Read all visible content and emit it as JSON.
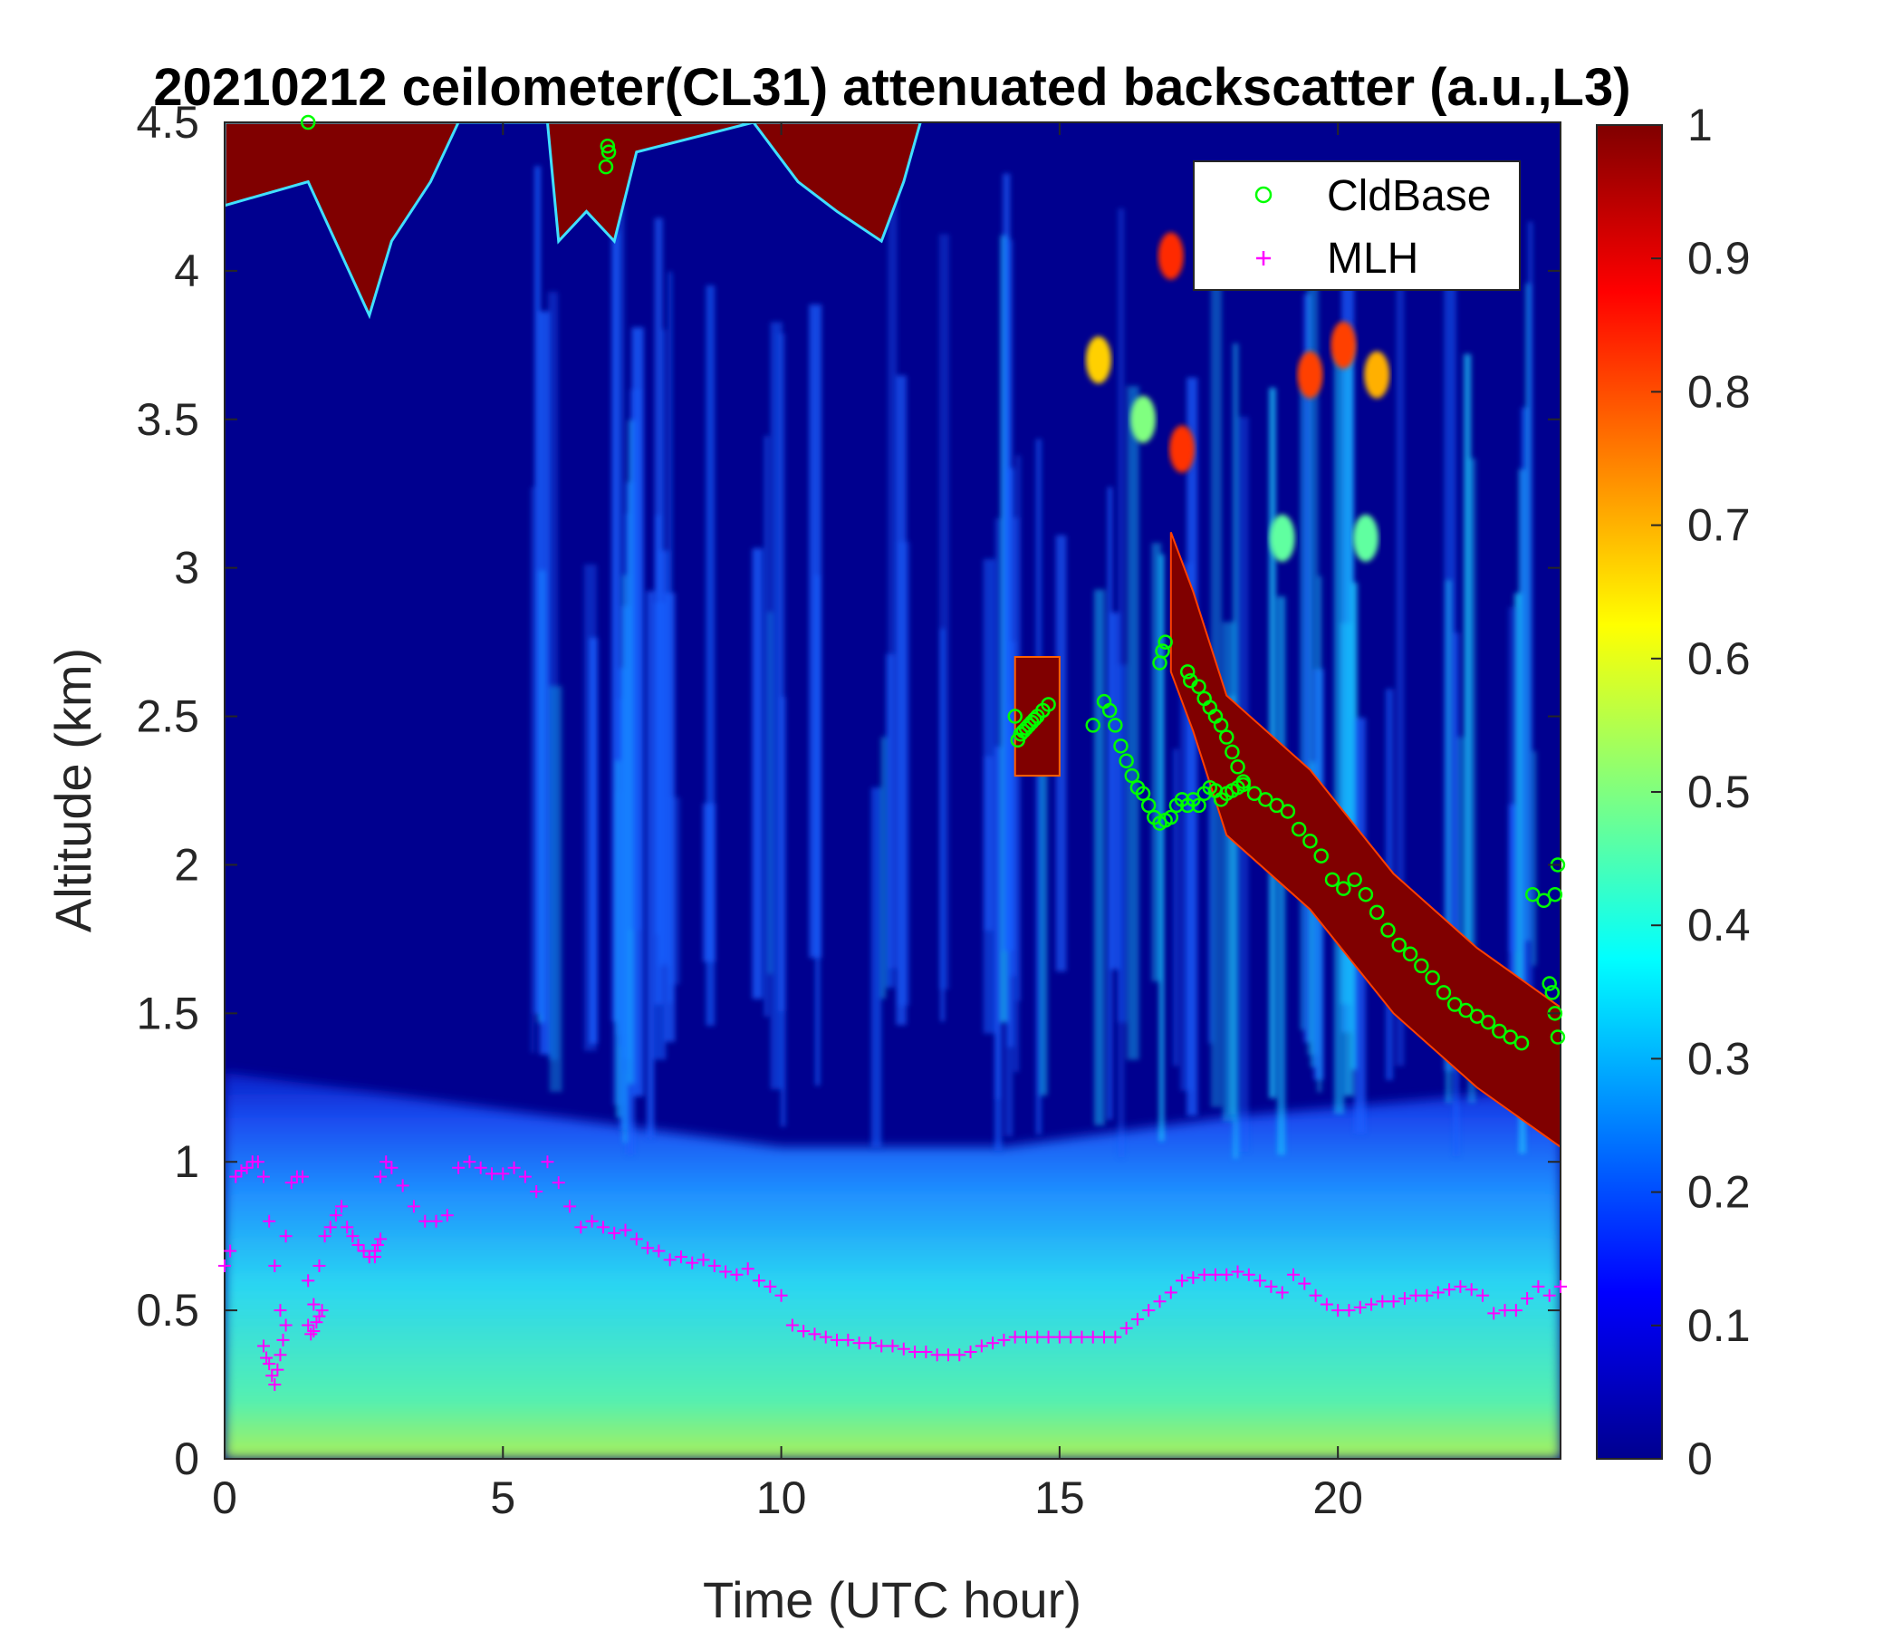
{
  "chart_data": {
    "type": "heatmap",
    "title": "20210212 ceilometer(CL31) attenuated backscatter (a.u.,L3)",
    "xlabel": "Time (UTC hour)",
    "ylabel": "Altitude (km)",
    "xlim": [
      0,
      24
    ],
    "ylim": [
      0,
      4.5
    ],
    "x_ticks": [
      "0",
      "5",
      "10",
      "15",
      "20"
    ],
    "y_ticks": [
      "0",
      "0.5",
      "1",
      "1.5",
      "2",
      "2.5",
      "3",
      "3.5",
      "4",
      "4.5"
    ],
    "colorbar": {
      "colormap": "jet",
      "range": [
        0,
        1
      ],
      "ticks": [
        "0",
        "0.1",
        "0.2",
        "0.3",
        "0.4",
        "0.5",
        "0.6",
        "0.7",
        "0.8",
        "0.9",
        "1"
      ]
    },
    "legend": {
      "placement": "top-right",
      "entries": [
        {
          "label": "CldBase",
          "marker": "circle",
          "color": "#00ff00"
        },
        {
          "label": "MLH",
          "marker": "plus",
          "color": "#ff00ff"
        }
      ]
    },
    "features": {
      "high_cloud": [
        [
          0,
          4.22
        ],
        [
          1.5,
          4.3
        ],
        [
          2.6,
          3.85
        ],
        [
          3.0,
          4.1
        ],
        [
          3.7,
          4.3
        ],
        [
          4.2,
          4.5
        ],
        [
          5.8,
          4.5
        ],
        [
          6.0,
          4.1
        ],
        [
          6.5,
          4.2
        ],
        [
          7.0,
          4.1
        ],
        [
          7.4,
          4.4
        ],
        [
          9.5,
          4.5
        ],
        [
          10.3,
          4.3
        ],
        [
          11.0,
          4.2
        ],
        [
          11.8,
          4.1
        ],
        [
          12.2,
          4.3
        ],
        [
          12.5,
          4.5
        ]
      ],
      "backscatter_max_core": [
        [
          17.0,
          3.0
        ],
        [
          17.4,
          2.8
        ],
        [
          18.0,
          2.45
        ],
        [
          19.5,
          2.2
        ],
        [
          21.0,
          1.85
        ],
        [
          22.5,
          1.6
        ],
        [
          24.0,
          1.4
        ]
      ],
      "backscatter_max_patch": {
        "x": [
          14.2,
          15.0
        ],
        "y": [
          2.3,
          2.7
        ]
      },
      "boundary_layer_top": [
        [
          0,
          1.3
        ],
        [
          2.0,
          1.25
        ],
        [
          6.0,
          1.15
        ],
        [
          10.0,
          1.05
        ],
        [
          14.0,
          1.05
        ],
        [
          18.0,
          1.15
        ],
        [
          24.0,
          1.25
        ]
      ]
    },
    "series": [
      {
        "name": "CldBase",
        "x": [
          1.5,
          6.85,
          6.9,
          6.88,
          14.2,
          14.25,
          14.3,
          14.35,
          14.4,
          14.45,
          14.5,
          14.55,
          14.6,
          14.7,
          14.8,
          15.6,
          15.8,
          15.9,
          16.0,
          16.1,
          16.2,
          16.3,
          16.4,
          16.5,
          16.6,
          16.7,
          16.8,
          16.9,
          17.0,
          17.1,
          17.2,
          17.3,
          17.4,
          17.5,
          17.6,
          17.7,
          17.8,
          17.9,
          18.0,
          18.1,
          18.2,
          18.3,
          18.5,
          18.7,
          18.9,
          19.1,
          19.3,
          19.5,
          19.7,
          19.9,
          20.1,
          20.3,
          20.5,
          20.7,
          20.9,
          21.1,
          21.3,
          21.5,
          21.7,
          21.9,
          22.1,
          22.3,
          22.5,
          22.7,
          22.9,
          23.1,
          23.3,
          23.5,
          23.7,
          23.9,
          23.95,
          23.8,
          23.85,
          23.9,
          23.95,
          16.8,
          16.85,
          16.9,
          17.3,
          17.35,
          17.5,
          17.6,
          17.7,
          17.8,
          17.9,
          18.0,
          18.1,
          18.2,
          18.3
        ],
        "y": [
          4.5,
          4.35,
          4.4,
          4.42,
          2.5,
          2.42,
          2.44,
          2.45,
          2.46,
          2.47,
          2.48,
          2.49,
          2.5,
          2.52,
          2.54,
          2.47,
          2.55,
          2.52,
          2.47,
          2.4,
          2.35,
          2.3,
          2.26,
          2.24,
          2.2,
          2.16,
          2.14,
          2.15,
          2.16,
          2.2,
          2.22,
          2.2,
          2.22,
          2.2,
          2.24,
          2.26,
          2.25,
          2.22,
          2.24,
          2.25,
          2.26,
          2.27,
          2.24,
          2.22,
          2.2,
          2.18,
          2.12,
          2.08,
          2.03,
          1.95,
          1.92,
          1.95,
          1.9,
          1.84,
          1.78,
          1.73,
          1.7,
          1.66,
          1.62,
          1.57,
          1.53,
          1.51,
          1.49,
          1.47,
          1.44,
          1.42,
          1.4,
          1.9,
          1.88,
          1.9,
          2.0,
          1.6,
          1.57,
          1.5,
          1.42,
          2.68,
          2.72,
          2.75,
          2.65,
          2.62,
          2.6,
          2.56,
          2.53,
          2.5,
          2.47,
          2.43,
          2.38,
          2.33,
          2.28
        ]
      },
      {
        "name": "MLH",
        "x": [
          0.0,
          0.1,
          0.2,
          0.3,
          0.4,
          0.5,
          0.6,
          0.7,
          0.8,
          0.9,
          1.0,
          1.1,
          1.2,
          1.3,
          1.4,
          1.5,
          1.6,
          1.7,
          1.8,
          1.9,
          2.0,
          2.1,
          2.2,
          2.3,
          2.4,
          2.5,
          2.6,
          2.7,
          2.8,
          2.9,
          3.0,
          3.2,
          3.4,
          3.6,
          3.8,
          4.0,
          4.2,
          4.4,
          4.6,
          4.8,
          5.0,
          5.2,
          5.4,
          5.6,
          5.8,
          6.0,
          6.2,
          6.4,
          6.6,
          6.8,
          7.0,
          7.2,
          7.4,
          7.6,
          7.8,
          8.0,
          8.2,
          8.4,
          8.6,
          8.8,
          9.0,
          9.2,
          9.4,
          9.6,
          9.8,
          10.0,
          10.2,
          10.4,
          10.6,
          10.8,
          11.0,
          11.2,
          11.4,
          11.6,
          11.8,
          12.0,
          12.2,
          12.4,
          12.6,
          12.8,
          13.0,
          13.2,
          13.4,
          13.6,
          13.8,
          14.0,
          14.2,
          14.4,
          14.6,
          14.8,
          15.0,
          15.2,
          15.4,
          15.6,
          15.8,
          16.0,
          16.2,
          16.4,
          16.6,
          16.8,
          17.0,
          17.2,
          17.4,
          17.6,
          17.8,
          18.0,
          18.2,
          18.4,
          18.6,
          18.8,
          19.0,
          19.2,
          19.4,
          19.6,
          19.8,
          20.0,
          20.2,
          20.4,
          20.6,
          20.8,
          21.0,
          21.2,
          21.4,
          21.6,
          21.8,
          22.0,
          22.2,
          22.4,
          22.6,
          22.8,
          23.0,
          23.2,
          23.4,
          23.6,
          23.8,
          24.0,
          0.7,
          0.75,
          0.8,
          0.85,
          0.9,
          0.95,
          1.0,
          1.05,
          1.1,
          1.5,
          1.55,
          1.6,
          1.65,
          1.7,
          1.75,
          2.6,
          2.7,
          2.75,
          2.8
        ],
        "y": [
          0.65,
          0.7,
          0.95,
          0.97,
          0.98,
          1.0,
          1.0,
          0.95,
          0.8,
          0.65,
          0.5,
          0.75,
          0.93,
          0.95,
          0.95,
          0.6,
          0.52,
          0.65,
          0.75,
          0.78,
          0.82,
          0.85,
          0.78,
          0.75,
          0.72,
          0.7,
          0.68,
          0.68,
          0.95,
          1.0,
          0.98,
          0.92,
          0.85,
          0.8,
          0.8,
          0.82,
          0.98,
          1.0,
          0.98,
          0.96,
          0.96,
          0.98,
          0.95,
          0.9,
          1.0,
          0.93,
          0.85,
          0.78,
          0.8,
          0.78,
          0.76,
          0.77,
          0.74,
          0.71,
          0.7,
          0.67,
          0.68,
          0.66,
          0.67,
          0.65,
          0.63,
          0.62,
          0.64,
          0.6,
          0.58,
          0.55,
          0.45,
          0.43,
          0.42,
          0.41,
          0.4,
          0.4,
          0.39,
          0.39,
          0.38,
          0.38,
          0.37,
          0.36,
          0.36,
          0.35,
          0.35,
          0.35,
          0.36,
          0.38,
          0.39,
          0.4,
          0.41,
          0.41,
          0.41,
          0.41,
          0.41,
          0.41,
          0.41,
          0.41,
          0.41,
          0.41,
          0.44,
          0.47,
          0.5,
          0.53,
          0.56,
          0.6,
          0.61,
          0.62,
          0.62,
          0.62,
          0.63,
          0.62,
          0.6,
          0.58,
          0.56,
          0.62,
          0.59,
          0.55,
          0.52,
          0.5,
          0.5,
          0.51,
          0.52,
          0.53,
          0.53,
          0.54,
          0.55,
          0.55,
          0.56,
          0.57,
          0.58,
          0.57,
          0.55,
          0.49,
          0.5,
          0.5,
          0.54,
          0.58,
          0.55,
          0.58,
          0.38,
          0.34,
          0.32,
          0.28,
          0.25,
          0.3,
          0.35,
          0.4,
          0.45,
          0.45,
          0.42,
          0.43,
          0.46,
          0.48,
          0.5,
          0.68,
          0.7,
          0.72,
          0.74
        ]
      }
    ]
  }
}
